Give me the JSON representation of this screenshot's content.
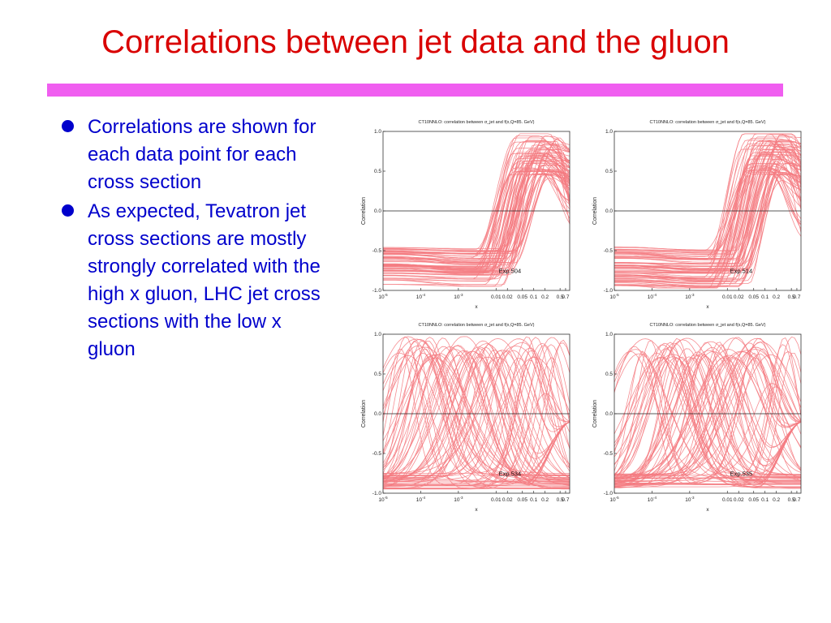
{
  "slide": {
    "title": "Correlations between jet data and the gluon",
    "bullets": [
      "Correlations are shown for each data point for each cross section",
      "As expected, Tevatron jet cross sections are mostly strongly correlated with the high x gluon, LHC jet cross sections with the low x gluon"
    ],
    "colors": {
      "title": "#d90000",
      "bar": "#f05ef0",
      "text": "#0000cc",
      "curve": "#f47a80"
    }
  },
  "chart_data": [
    {
      "type": "line",
      "title": "CT10NNLO: correlation between σ_jet and f(x,Q=85. GeV)",
      "xlabel": "x",
      "ylabel": "Correlation",
      "xscale": "log",
      "xlim": [
        1e-05,
        0.9
      ],
      "ylim": [
        -1.0,
        1.0
      ],
      "xticks": [
        "10^-5",
        "10^-4",
        "10^-3",
        "0.01",
        "0.02",
        "0.05",
        "0.1",
        "0.2",
        "0.5",
        "0.7"
      ],
      "yticks": [
        "-1.0",
        "-0.5",
        "0.0",
        "0.5",
        "1.0"
      ],
      "annotation": "Exp.504",
      "pattern": "high-x",
      "grid": false
    },
    {
      "type": "line",
      "title": "CT10NNLO: correlation between σ_jet and f(x,Q=85. GeV)",
      "xlabel": "x",
      "ylabel": "Correlation",
      "xscale": "log",
      "xlim": [
        1e-05,
        0.9
      ],
      "ylim": [
        -1.0,
        1.0
      ],
      "xticks": [
        "10^-5",
        "10^-4",
        "10^-3",
        "0.01",
        "0.02",
        "0.05",
        "0.1",
        "0.2",
        "0.5",
        "0.7"
      ],
      "yticks": [
        "-1.0",
        "-0.5",
        "0.0",
        "0.5",
        "1.0"
      ],
      "annotation": "Exp.514",
      "pattern": "high-x",
      "grid": false
    },
    {
      "type": "line",
      "title": "CT10NNLO: correlation between σ_jet and f(x,Q=85. GeV)",
      "xlabel": "x",
      "ylabel": "Correlation",
      "xscale": "log",
      "xlim": [
        1e-05,
        0.9
      ],
      "ylim": [
        -1.0,
        1.0
      ],
      "xticks": [
        "10^-5",
        "10^-4",
        "10^-3",
        "0.01",
        "0.02",
        "0.05",
        "0.1",
        "0.2",
        "0.5",
        "0.7"
      ],
      "yticks": [
        "-1.0",
        "-0.5",
        "0.0",
        "0.5",
        "1.0"
      ],
      "annotation": "Exp.534",
      "pattern": "wide",
      "grid": false
    },
    {
      "type": "line",
      "title": "CT10NNLO: correlation between σ_jet and f(x,Q=85. GeV)",
      "xlabel": "x",
      "ylabel": "Correlation",
      "xscale": "log",
      "xlim": [
        1e-05,
        0.9
      ],
      "ylim": [
        -1.0,
        1.0
      ],
      "xticks": [
        "10^-5",
        "10^-4",
        "10^-3",
        "0.01",
        "0.02",
        "0.05",
        "0.1",
        "0.2",
        "0.5",
        "0.7"
      ],
      "yticks": [
        "-1.0",
        "-0.5",
        "0.0",
        "0.5",
        "1.0"
      ],
      "annotation": "Exp.535",
      "pattern": "wide",
      "grid": false
    }
  ]
}
